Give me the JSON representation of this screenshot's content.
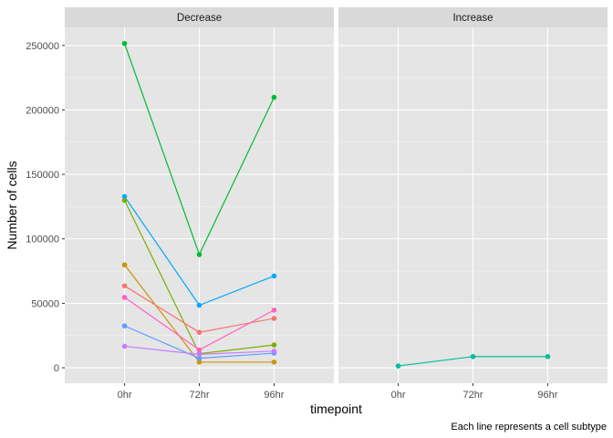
{
  "chart_data": {
    "type": "line",
    "caption": "Each line represents a cell subtype",
    "xlabel": "timepoint",
    "ylabel": "Number of cells",
    "categories": [
      "0hr",
      "72hr",
      "96hr"
    ],
    "ylim": [
      -12000,
      264000
    ],
    "y_ticks": [
      0,
      50000,
      100000,
      150000,
      200000,
      250000
    ],
    "y_tick_labels": [
      "0",
      "50000",
      "100000",
      "150000",
      "200000",
      "250000"
    ],
    "grid": true,
    "panel_background": "#e5e5e5",
    "strip_background": "#d9d9d9",
    "facets": [
      {
        "label": "Decrease",
        "series": [
          {
            "color": "#00BA38",
            "values": [
              251500,
              87800,
              209700
            ]
          },
          {
            "color": "#00A9FF",
            "values": [
              132800,
              48500,
              71200
            ]
          },
          {
            "color": "#7CAE00",
            "values": [
              129800,
              10900,
              17700
            ]
          },
          {
            "color": "#CD9600",
            "values": [
              79800,
              4400,
              4400
            ]
          },
          {
            "color": "#F8766D",
            "values": [
              63500,
              27500,
              38300
            ]
          },
          {
            "color": "#FF61C3",
            "values": [
              54600,
              13900,
              44700
            ]
          },
          {
            "color": "#619CFF",
            "values": [
              32500,
              7400,
              11300
            ]
          },
          {
            "color": "#C77CFF",
            "values": [
              16700,
              10400,
              12900
            ]
          }
        ]
      },
      {
        "label": "Increase",
        "series": [
          {
            "color": "#00BE9C",
            "values": [
              1400,
              8700,
              8700
            ]
          }
        ]
      }
    ]
  }
}
